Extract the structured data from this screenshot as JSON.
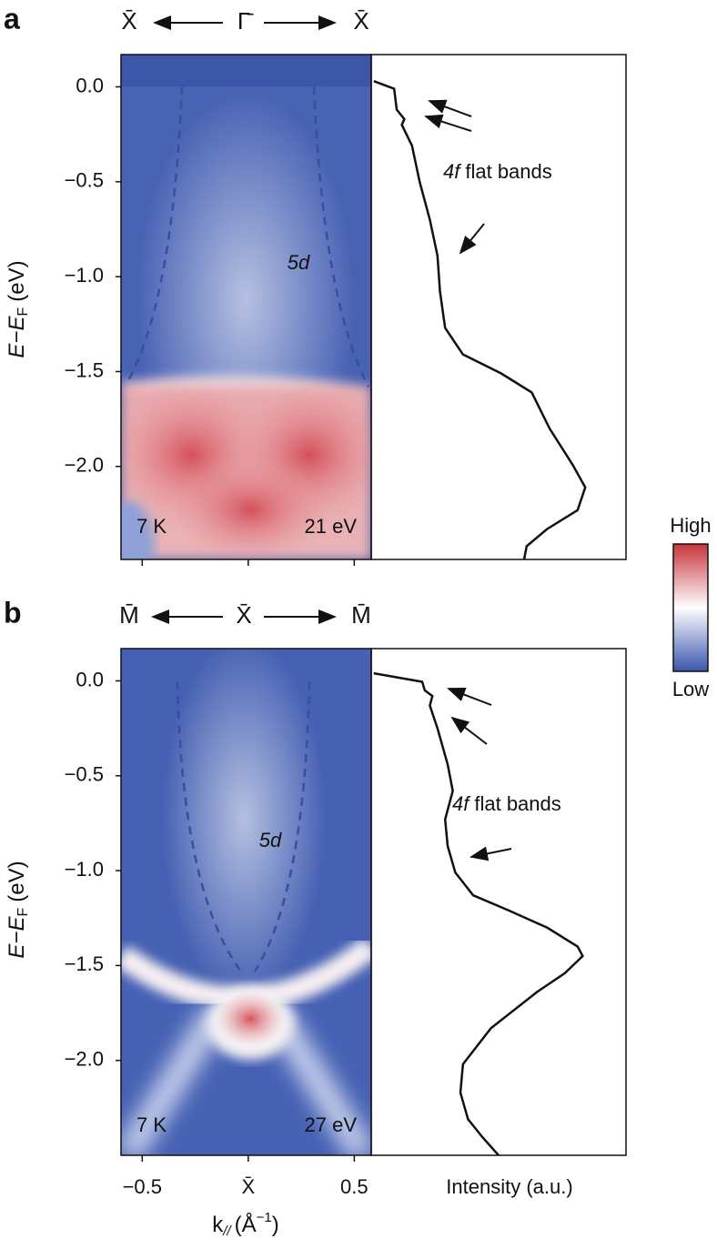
{
  "colorbar": {
    "high": "High",
    "low": "Low"
  },
  "chart_data": [
    {
      "type": "line",
      "label": "a",
      "path_labels": [
        "X̄",
        "Γ̄",
        "X̄"
      ],
      "temperature": "7 K",
      "photon_energy": "21 eV",
      "band_label": "5d",
      "annotation": {
        "italic": "4f",
        "text": "flat bands"
      },
      "ylabel": {
        "main": "E−E",
        "sub": "F",
        "unit": "(eV)"
      },
      "ylim": [
        -2.49,
        0.17
      ],
      "yticks": [
        {
          "value": 0,
          "label": "0.0"
        },
        {
          "value": -0.5,
          "label": "−0.5"
        },
        {
          "value": -1,
          "label": "−1.0"
        },
        {
          "value": -1.5,
          "label": "−1.5"
        },
        {
          "value": -2,
          "label": "−2.0"
        }
      ],
      "xlim": [
        -0.6,
        0.58
      ],
      "xticks": [
        -0.5,
        0,
        0.5
      ],
      "edc": {
        "xlim": [
          0,
          1
        ],
        "energy": [
          0.03,
          -0.01,
          -0.12,
          -0.17,
          -0.2,
          -0.31,
          -0.5,
          -0.7,
          -0.89,
          -1.08,
          -1.27,
          -1.41,
          -1.51,
          -1.61,
          -1.8,
          -1.99,
          -2.11,
          -2.23,
          -2.33,
          -2.42,
          -2.49
        ],
        "intensity": [
          0.01,
          0.09,
          0.1,
          0.13,
          0.12,
          0.16,
          0.19,
          0.23,
          0.26,
          0.27,
          0.29,
          0.36,
          0.51,
          0.63,
          0.7,
          0.79,
          0.84,
          0.81,
          0.69,
          0.61,
          0.6
        ]
      }
    },
    {
      "type": "line",
      "label": "b",
      "path_labels": [
        "M̄",
        "X̄",
        "M̄"
      ],
      "temperature": "7 K",
      "photon_energy": "27 eV",
      "band_label": "5d",
      "annotation": {
        "italic": "4f",
        "text": "flat bands"
      },
      "ylabel": {
        "main": "E−E",
        "sub": "F",
        "unit": "(eV)"
      },
      "xlabel": {
        "main": "k",
        "sub": "//",
        "unit": "(Å",
        "sup": "−1",
        "close": ")"
      },
      "edc_xlabel": "Intensity (a.u.)",
      "ylim": [
        -2.5,
        0.17
      ],
      "yticks": [
        {
          "value": 0,
          "label": "0.0"
        },
        {
          "value": -0.5,
          "label": "−0.5"
        },
        {
          "value": -1,
          "label": "−1.0"
        },
        {
          "value": -1.5,
          "label": "−1.5"
        },
        {
          "value": -2,
          "label": "−2.0"
        }
      ],
      "xlim": [
        -0.6,
        0.58
      ],
      "xticks": [
        {
          "value": -0.5,
          "label": "−0.5"
        },
        {
          "value": 0,
          "label": "X̄"
        },
        {
          "value": 0.5,
          "label": "0.5"
        }
      ],
      "edc": {
        "xlim": [
          0,
          1
        ],
        "energy": [
          0.04,
          -0.005,
          -0.05,
          -0.08,
          -0.13,
          -0.25,
          -0.44,
          -0.58,
          -0.73,
          -0.87,
          -1.01,
          -1.13,
          -1.21,
          -1.3,
          -1.4,
          -1.45,
          -1.54,
          -1.64,
          -1.83,
          -2.02,
          -2.17,
          -2.31,
          -2.41,
          -2.5
        ],
        "intensity": [
          0.01,
          0.2,
          0.21,
          0.24,
          0.23,
          0.26,
          0.3,
          0.32,
          0.29,
          0.3,
          0.33,
          0.4,
          0.54,
          0.69,
          0.81,
          0.83,
          0.76,
          0.65,
          0.47,
          0.36,
          0.35,
          0.38,
          0.44,
          0.5
        ]
      }
    }
  ]
}
